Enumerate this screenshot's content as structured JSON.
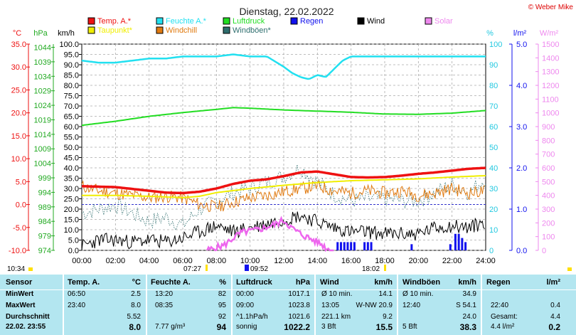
{
  "title": "Dienstag, 22.02.2022",
  "copyright": "© Weber Mike",
  "colors": {
    "temp": "#ee1111",
    "humidity": "#22e0f0",
    "pressure": "#22dd22",
    "rain": "#1111ee",
    "wind": "#000000",
    "solar": "#ee66ee",
    "dewpoint": "#f0ee00",
    "windchill": "#e07a10",
    "gust": "#2e6e6e",
    "stats_bg": "#b3e6f0",
    "axis_red": "#ee1111",
    "axis_green": "#22aa22",
    "axis_cyan": "#22c8e0",
    "axis_blue": "#1111ee",
    "axis_pink": "#ee88ee"
  },
  "legend": [
    {
      "label": "Temp. A.*",
      "color": "#ee1111"
    },
    {
      "label": "Feuchte A.*",
      "color": "#22e0f0"
    },
    {
      "label": "Luftdruck",
      "color": "#22dd22"
    },
    {
      "label": "Regen",
      "color": "#1111ee"
    },
    {
      "label": "Wind",
      "color": "#000000"
    },
    {
      "label": "Solar",
      "color": "#ee88ee"
    },
    {
      "label": "Taupunkt*",
      "color": "#f0ee00"
    },
    {
      "label": "Windchill",
      "color": "#e07a10"
    },
    {
      "label": "Windböen*",
      "color": "#2e6e6e"
    }
  ],
  "axis_units": {
    "celsius": "°C",
    "hpa": "hPa",
    "kmh": "km/h",
    "percent": "%",
    "lm2": "l/m²",
    "wm2": "W/m²"
  },
  "axes": {
    "celsius": [
      "35.0",
      "30.0",
      "25.0",
      "20.0",
      "15.0",
      "10.0",
      "5.0",
      "0.0",
      "-5.0",
      "-10.0"
    ],
    "hpa": [
      "1044",
      "1039",
      "1034",
      "1029",
      "1024",
      "1019",
      "1014",
      "1009",
      "1004",
      "999",
      "994",
      "989",
      "984",
      "979",
      "974"
    ],
    "kmh": [
      "100.0",
      "95.0",
      "90.0",
      "85.0",
      "80.0",
      "75.0",
      "70.0",
      "65.0",
      "60.0",
      "55.0",
      "50.0",
      "45.0",
      "40.0",
      "35.0",
      "30.0",
      "25.0",
      "20.0",
      "15.0",
      "10.0",
      "5.0",
      "0.0"
    ],
    "percent": [
      "100",
      "90",
      "80",
      "70",
      "60",
      "50",
      "40",
      "30",
      "20",
      "10",
      "0"
    ],
    "lm2": [
      "5.0",
      "4.0",
      "3.0",
      "2.0",
      "1.0",
      "0.0"
    ],
    "wm2": [
      "1500",
      "1400",
      "1300",
      "1200",
      "1100",
      "1000",
      "900",
      "800",
      "700",
      "600",
      "500",
      "400",
      "300",
      "200",
      "100",
      "0"
    ]
  },
  "x_ticks": [
    "00:00",
    "02:00",
    "04:00",
    "06:00",
    "08:00",
    "10:00",
    "12:00",
    "14:00",
    "16:00",
    "18:00",
    "20:00",
    "22:00",
    "24:00"
  ],
  "sun": {
    "left_time": "10:34",
    "sunrise": "07:27",
    "noon": "09:52",
    "sunset": "18:02"
  },
  "chart_data": {
    "type": "line",
    "x_unit": "hour",
    "xlim": [
      0,
      24
    ],
    "grid": true,
    "series": [
      {
        "name": "Temp. A.*",
        "unit": "°C",
        "x": [
          0,
          2,
          4,
          5,
          6,
          7,
          8,
          9,
          10,
          11,
          12,
          13,
          14,
          15,
          16,
          17,
          18,
          19,
          20,
          21,
          22,
          23,
          24
        ],
        "values": [
          4.0,
          3.8,
          3.0,
          2.6,
          2.5,
          2.8,
          3.5,
          4.5,
          5.2,
          5.5,
          6.2,
          7.0,
          7.2,
          6.6,
          6.0,
          5.9,
          6.0,
          6.3,
          6.7,
          7.0,
          7.4,
          7.8,
          8.0
        ]
      },
      {
        "name": "Feuchte A.*",
        "unit": "%",
        "x": [
          0,
          1,
          2,
          3,
          4,
          5,
          6,
          7,
          8,
          9,
          10,
          11,
          12,
          12.5,
          13,
          13.5,
          14,
          14.5,
          15,
          15.5,
          16,
          18,
          20,
          22,
          24
        ],
        "values": [
          92,
          91,
          91,
          92,
          93,
          93,
          94,
          94,
          94,
          95,
          94,
          94,
          89,
          86,
          84,
          83,
          85,
          84,
          88,
          92,
          94,
          94,
          94,
          94,
          94
        ]
      },
      {
        "name": "Luftdruck",
        "unit": "hPa",
        "x": [
          0,
          2,
          4,
          6,
          8,
          9,
          10,
          12,
          14,
          16,
          18,
          20,
          22,
          24
        ],
        "values": [
          1017.1,
          1018.5,
          1020.2,
          1021.5,
          1022.6,
          1023.2,
          1023.0,
          1022.4,
          1022.0,
          1021.6,
          1021.0,
          1020.9,
          1021.3,
          1022.2
        ]
      },
      {
        "name": "Taupunkt*",
        "unit": "°C",
        "x": [
          0,
          2,
          4,
          6,
          7,
          8,
          10,
          12,
          14,
          16,
          18,
          20,
          22,
          24
        ],
        "values": [
          2.0,
          2.0,
          1.8,
          1.5,
          1.8,
          2.6,
          3.5,
          4.2,
          4.8,
          5.2,
          5.4,
          5.6,
          6.0,
          6.3
        ]
      },
      {
        "name": "Windchill",
        "unit": "°C",
        "x": [
          0,
          1,
          2,
          3,
          4,
          5,
          6,
          7,
          8,
          9,
          10,
          11,
          12,
          13,
          14,
          15,
          16,
          17,
          18,
          19,
          20,
          21,
          22,
          23,
          24
        ],
        "values": [
          4.0,
          3.0,
          2.5,
          2.0,
          1.5,
          1.8,
          1.5,
          0.0,
          -0.5,
          0.5,
          1.5,
          2.0,
          2.8,
          3.5,
          4.0,
          3.0,
          2.5,
          3.0,
          2.5,
          3.0,
          2.0,
          2.5,
          3.5,
          2.5,
          3.0
        ]
      },
      {
        "name": "Wind",
        "unit": "km/h",
        "x": [
          0,
          1,
          2,
          3,
          4,
          5,
          6,
          7,
          8,
          9,
          10,
          11,
          12,
          13,
          14,
          15,
          16,
          17,
          18,
          19,
          20,
          21,
          22,
          23,
          24
        ],
        "values": [
          2,
          5,
          5,
          4,
          5,
          4,
          6,
          9,
          12,
          9,
          11,
          13,
          15,
          17,
          14,
          11,
          9,
          9,
          8,
          8,
          8,
          11,
          12,
          11,
          14
        ]
      },
      {
        "name": "Windböen*",
        "unit": "km/h",
        "x": [
          0,
          1,
          2,
          3,
          4,
          5,
          6,
          7,
          8,
          9,
          10,
          11,
          12,
          13,
          14,
          15,
          16,
          17,
          18,
          19,
          20,
          21,
          22,
          23,
          24
        ],
        "values": [
          18,
          20,
          22,
          18,
          14,
          16,
          12,
          20,
          24,
          28,
          30,
          33,
          36,
          40,
          33,
          27,
          24,
          25,
          25,
          24,
          24,
          28,
          32,
          28,
          35
        ]
      },
      {
        "name": "Solar",
        "unit": "W/m²",
        "x": [
          7.45,
          8,
          8.5,
          9,
          9.5,
          10,
          10.5,
          11,
          11.5,
          12,
          12.5,
          13,
          13.5,
          14,
          14.3,
          14.6,
          15
        ],
        "values": [
          0,
          20,
          40,
          90,
          130,
          140,
          150,
          170,
          190,
          220,
          160,
          120,
          90,
          60,
          40,
          10,
          0
        ]
      },
      {
        "name": "Regen",
        "unit": "l/m²",
        "x": [
          15.2,
          15.4,
          15.6,
          15.8,
          16.0,
          16.2,
          16.8,
          17.0,
          17.2,
          19.6,
          21.9,
          22.2,
          22.4,
          22.6,
          22.8
        ],
        "values": [
          0.2,
          0.2,
          0.2,
          0.2,
          0.2,
          0.2,
          0.2,
          0.2,
          0.2,
          0.15,
          0.15,
          0.4,
          0.4,
          0.3,
          0.2
        ]
      }
    ]
  },
  "stats": {
    "headers": [
      "Sensor",
      "Temp. A.",
      "°C",
      "Feuchte A.",
      "%",
      "Luftdruck",
      "hPa",
      "Wind",
      "km/h",
      "Windböen",
      "km/h",
      "Regen",
      "l/m²"
    ],
    "row_labels": [
      "MinWert",
      "MaxWert",
      "Durchschnitt",
      "22.02. 23:55"
    ],
    "temp": [
      [
        "06:50",
        "2.5"
      ],
      [
        "23:40",
        "8.0"
      ],
      [
        "",
        "5.52"
      ],
      [
        "",
        "8.0"
      ]
    ],
    "hum": [
      [
        "13:20",
        "82"
      ],
      [
        "08:35",
        "95"
      ],
      [
        "",
        "92"
      ],
      [
        "7.77 g/m³",
        "94"
      ]
    ],
    "press": [
      [
        "00:00",
        "1017.1"
      ],
      [
        "09:00",
        "1023.8"
      ],
      [
        "^1.1hPa/h",
        "1021.6"
      ],
      [
        "sonnig",
        "1022.2"
      ]
    ],
    "wind": [
      [
        "Ø 10 min.",
        "14.1"
      ],
      [
        "13:05",
        "W-NW 20.9"
      ],
      [
        "221.1 km",
        "9.2"
      ],
      [
        "3 Bft",
        "15.5"
      ]
    ],
    "gust": [
      [
        "Ø 10 min.",
        "34.9"
      ],
      [
        "12:40",
        "S 54.1"
      ],
      [
        "",
        "24.0"
      ],
      [
        "5 Bft",
        "38.3"
      ]
    ],
    "rain": [
      [
        "",
        ""
      ],
      [
        "22:40",
        "0.4"
      ],
      [
        "Gesamt:",
        "4.4"
      ],
      [
        "4.4 l/m²",
        "0.2"
      ]
    ]
  }
}
